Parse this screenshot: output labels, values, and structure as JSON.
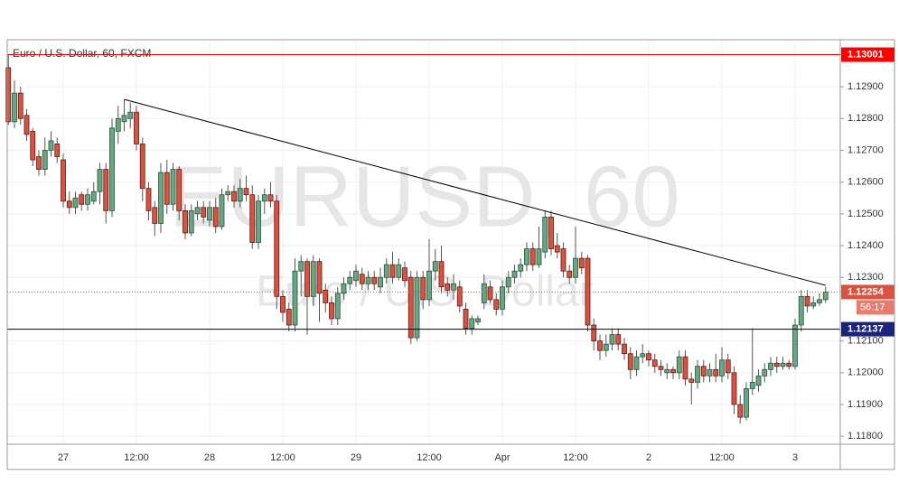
{
  "chart_data": {
    "type": "candlestick",
    "title": "Euro / U.S. Dollar, 60, FXCM",
    "watermark": "EURUSD, 60",
    "watermark_subtitle": "Euro / U.S. Dollar",
    "categories": [
      null,
      null,
      null,
      null,
      null,
      null,
      null,
      null,
      null,
      "27",
      null,
      null,
      null,
      null,
      null,
      null,
      null,
      null,
      null,
      null,
      null,
      "12:00",
      null,
      null,
      null,
      null,
      null,
      null,
      null,
      null,
      null,
      null,
      null,
      "28",
      null,
      null,
      null,
      null,
      null,
      null,
      null,
      null,
      null,
      null,
      null,
      "12:00",
      null,
      null,
      null,
      null,
      null,
      null,
      null,
      null,
      null,
      null,
      null,
      "29",
      null,
      null,
      null,
      null,
      null,
      null,
      null,
      null,
      null,
      null,
      null,
      "12:00",
      null,
      null,
      null,
      null,
      null,
      null,
      null,
      null,
      null,
      null,
      null,
      "Apr",
      null,
      null,
      null,
      null,
      null,
      null,
      null,
      null,
      null,
      null,
      null,
      "12:00",
      null,
      null,
      null,
      null,
      null,
      null,
      null,
      null,
      null,
      null,
      null,
      "2",
      null,
      null,
      null,
      null,
      null,
      null,
      null,
      null,
      null,
      null,
      null,
      "12:00",
      null,
      null,
      null,
      null,
      null,
      null,
      null,
      null,
      null,
      null,
      null,
      "3",
      null,
      null,
      null,
      null,
      null
    ],
    "open": [
      1.1296,
      1.1279,
      1.1288,
      1.1281,
      1.1276,
      1.1268,
      1.1264,
      1.127,
      1.1272,
      1.1267,
      1.1254,
      1.1252,
      1.1256,
      1.1253,
      1.1254,
      1.1257,
      1.1264,
      1.1251,
      1.1276,
      1.1279,
      1.128,
      1.1282,
      1.1272,
      1.1258,
      1.1252,
      1.1247,
      1.1263,
      1.1253,
      1.1264,
      1.1251,
      1.1244,
      1.125,
      1.1252,
      1.1248,
      1.1252,
      1.1246,
      1.1256,
      1.1257,
      1.1254,
      1.1258,
      1.1256,
      1.1241,
      1.1254,
      1.1256,
      1.1254,
      1.1224,
      1.122,
      1.1215,
      1.1232,
      1.1235,
      1.1224,
      1.1235,
      1.1226,
      1.1222,
      1.1217,
      1.1225,
      1.1228,
      1.1229,
      1.1231,
      1.1228,
      1.123,
      1.1227,
      1.123,
      1.1234,
      1.123,
      1.1233,
      1.123,
      1.1211,
      1.123,
      1.1223,
      1.1232,
      1.1235,
      1.1228,
      1.1226,
      1.1227,
      1.122,
      1.1214,
      1.1216,
      1.1222,
      1.1227,
      1.1223,
      1.122,
      1.1227,
      1.123,
      1.1232,
      1.1234,
      1.1239,
      1.1234,
      1.1238,
      1.1249,
      1.124,
      1.1239,
      1.1232,
      1.123,
      1.1236,
      1.1236,
      1.1215,
      1.121,
      1.1207,
      1.1209,
      1.1212,
      1.1209,
      1.1206,
      1.1201,
      1.1205,
      1.1206,
      1.1204,
      1.1202,
      1.12,
      1.1201,
      1.12,
      1.1205,
      1.1198,
      1.1197,
      1.1202,
      1.1199,
      1.1201,
      1.1199,
      1.1204,
      1.12,
      1.119,
      1.1186,
      1.1195,
      1.1196,
      1.1199,
      1.1201,
      1.1203,
      1.1202,
      1.1203,
      1.1202,
      1.1215,
      1.1224,
      1.1221,
      1.1222,
      1.1223
    ],
    "high": [
      1.13,
      1.1292,
      1.129,
      1.1283,
      1.1277,
      1.127,
      1.1274,
      1.1276,
      1.1274,
      1.1269,
      1.1257,
      1.1257,
      1.1257,
      1.1258,
      1.126,
      1.1266,
      1.1266,
      1.128,
      1.1284,
      1.1286,
      1.1285,
      1.1284,
      1.1274,
      1.126,
      1.1254,
      1.1266,
      1.1267,
      1.1266,
      1.1265,
      1.1253,
      1.1253,
      1.1254,
      1.1254,
      1.1254,
      1.1255,
      1.1258,
      1.1259,
      1.1259,
      1.1261,
      1.1262,
      1.1259,
      1.1256,
      1.1258,
      1.126,
      1.1256,
      1.1226,
      1.1222,
      1.1236,
      1.1237,
      1.1236,
      1.1237,
      1.1236,
      1.1228,
      1.1224,
      1.1227,
      1.123,
      1.1232,
      1.1234,
      1.1233,
      1.1232,
      1.1232,
      1.1233,
      1.1236,
      1.1238,
      1.1236,
      1.1235,
      1.1232,
      1.1232,
      1.1232,
      1.1242,
      1.1239,
      1.124,
      1.123,
      1.1231,
      1.1229,
      1.1222,
      1.1218,
      1.1218,
      1.1231,
      1.1229,
      1.1225,
      1.1229,
      1.1232,
      1.1234,
      1.1236,
      1.1241,
      1.1241,
      1.1246,
      1.1251,
      1.1251,
      1.1244,
      1.1241,
      1.1234,
      1.1246,
      1.1238,
      1.1237,
      1.1217,
      1.1212,
      1.1212,
      1.1214,
      1.1214,
      1.1211,
      1.1208,
      1.1207,
      1.1209,
      1.1207,
      1.1206,
      1.1204,
      1.1203,
      1.1202,
      1.1207,
      1.1207,
      1.12,
      1.1204,
      1.1204,
      1.1203,
      1.1206,
      1.1208,
      1.1206,
      1.1202,
      1.1193,
      1.1197,
      1.1214,
      1.1201,
      1.1203,
      1.1205,
      1.1205,
      1.1205,
      1.1204,
      1.1217,
      1.1226,
      1.1226,
      1.1224,
      1.1225,
      1.1227
    ],
    "low": [
      1.1278,
      1.1277,
      1.1278,
      1.1273,
      1.1265,
      1.1262,
      1.1262,
      1.1268,
      1.1266,
      1.1252,
      1.125,
      1.125,
      1.1251,
      1.1251,
      1.1253,
      1.1253,
      1.1247,
      1.1249,
      1.1272,
      1.1276,
      1.1277,
      1.127,
      1.1254,
      1.1248,
      1.1243,
      1.1244,
      1.125,
      1.1251,
      1.1248,
      1.1242,
      1.1243,
      1.1248,
      1.1247,
      1.1246,
      1.1244,
      1.1245,
      1.1254,
      1.1252,
      1.1252,
      1.1254,
      1.1239,
      1.1239,
      1.125,
      1.1252,
      1.122,
      1.1216,
      1.1213,
      1.1213,
      1.1224,
      1.1212,
      1.1221,
      1.1216,
      1.1219,
      1.1215,
      1.1215,
      1.1223,
      1.1226,
      1.1227,
      1.1226,
      1.1226,
      1.1226,
      1.1225,
      1.1228,
      1.1228,
      1.1229,
      1.1227,
      1.1209,
      1.121,
      1.122,
      1.1221,
      1.1229,
      1.1225,
      1.1224,
      1.1223,
      1.1219,
      1.1212,
      1.1212,
      1.1215,
      1.122,
      1.1222,
      1.1218,
      1.1218,
      1.1225,
      1.1228,
      1.123,
      1.1232,
      1.1232,
      1.1233,
      1.1236,
      1.1237,
      1.1236,
      1.123,
      1.1228,
      1.1228,
      1.1231,
      1.1213,
      1.1207,
      1.1204,
      1.1205,
      1.1207,
      1.1207,
      1.1204,
      1.1198,
      1.1199,
      1.1203,
      1.1202,
      1.12,
      1.1199,
      1.1198,
      1.1198,
      1.1198,
      1.1196,
      1.119,
      1.1195,
      1.1197,
      1.1197,
      1.1197,
      1.1197,
      1.1198,
      1.1187,
      1.1184,
      1.1185,
      1.1193,
      1.1194,
      1.1197,
      1.1199,
      1.12,
      1.1201,
      1.1201,
      1.1201,
      1.1213,
      1.1219,
      1.122,
      1.1221,
      1.1222
    ],
    "close": [
      1.1279,
      1.1288,
      1.128,
      1.1275,
      1.1267,
      1.1264,
      1.127,
      1.1273,
      1.1268,
      1.1254,
      1.1252,
      1.1255,
      1.1253,
      1.1256,
      1.1257,
      1.1264,
      1.1251,
      1.1277,
      1.128,
      1.1281,
      1.1282,
      1.1272,
      1.1258,
      1.1251,
      1.1247,
      1.1263,
      1.1253,
      1.1264,
      1.1251,
      1.1244,
      1.1251,
      1.1252,
      1.1249,
      1.1252,
      1.1246,
      1.1256,
      1.1257,
      1.1254,
      1.1258,
      1.1256,
      1.1241,
      1.1254,
      1.1256,
      1.1254,
      1.1224,
      1.1219,
      1.1215,
      1.1232,
      1.1235,
      1.1224,
      1.1235,
      1.1225,
      1.1222,
      1.1217,
      1.1225,
      1.1228,
      1.123,
      1.1232,
      1.1228,
      1.123,
      1.1228,
      1.123,
      1.1234,
      1.123,
      1.1234,
      1.1229,
      1.1211,
      1.123,
      1.1223,
      1.1232,
      1.1235,
      1.1227,
      1.1226,
      1.1228,
      1.1221,
      1.1214,
      1.1217,
      1.1217,
      1.1228,
      1.1223,
      1.122,
      1.1227,
      1.123,
      1.1232,
      1.1234,
      1.1239,
      1.1234,
      1.1239,
      1.1249,
      1.1239,
      1.1238,
      1.1232,
      1.123,
      1.1236,
      1.1233,
      1.1215,
      1.121,
      1.1207,
      1.1209,
      1.1212,
      1.1209,
      1.1206,
      1.1201,
      1.1205,
      1.1206,
      1.1204,
      1.1202,
      1.1201,
      1.1201,
      1.12,
      1.1205,
      1.1198,
      1.1197,
      1.1202,
      1.1199,
      1.1201,
      1.1199,
      1.1204,
      1.12,
      1.119,
      1.1186,
      1.1195,
      1.1197,
      1.1199,
      1.1201,
      1.1203,
      1.1202,
      1.1203,
      1.1202,
      1.1215,
      1.1224,
      1.1221,
      1.1222,
      1.1223,
      1.12254
    ],
    "up_color": "#6ba583",
    "down_color": "#d75442",
    "ylim": [
      1.11775,
      1.13048
    ],
    "yticks": [
      {
        "value": 1.118,
        "label": "1.11800"
      },
      {
        "value": 1.119,
        "label": "1.11900"
      },
      {
        "value": 1.12,
        "label": "1.12000"
      },
      {
        "value": 1.121,
        "label": "1.12100"
      },
      {
        "value": 1.123,
        "label": "1.12300"
      },
      {
        "value": 1.124,
        "label": "1.12400"
      },
      {
        "value": 1.125,
        "label": "1.12500"
      },
      {
        "value": 1.126,
        "label": "1.12600"
      },
      {
        "value": 1.127,
        "label": "1.12700"
      },
      {
        "value": 1.128,
        "label": "1.12800"
      },
      {
        "value": 1.129,
        "label": "1.12900"
      }
    ],
    "grid": true,
    "horizontal_lines": [
      {
        "value": 1.13001,
        "label": "1.13001",
        "color": "#ff0000"
      },
      {
        "value": 1.12137,
        "label": "1.12137",
        "color": "#000000"
      }
    ],
    "last_price": {
      "value": 1.12254,
      "label": "1.12254",
      "color": "#d75442"
    },
    "countdown": "56:17",
    "trendline": {
      "x": [
        19,
        134
      ],
      "values": [
        1.1286,
        1.12275
      ],
      "color": "#000000"
    }
  }
}
